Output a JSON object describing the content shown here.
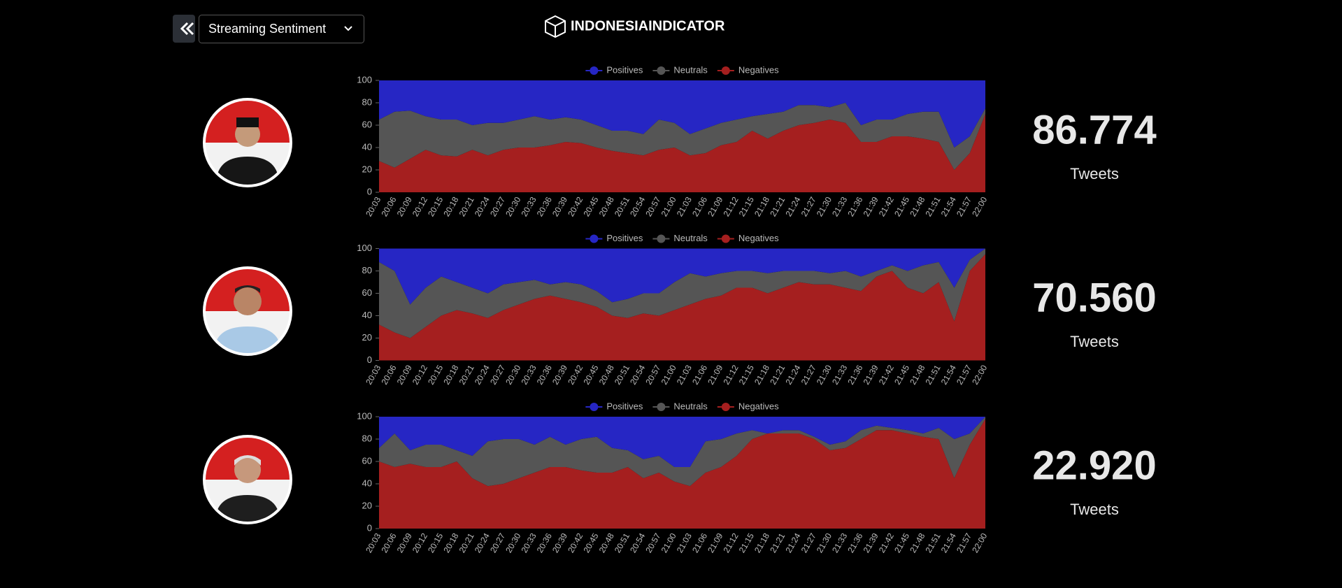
{
  "header": {
    "dropdown": "Streaming Sentiment",
    "brand": "INDONESIAINDICATOR"
  },
  "chart_data": [
    {
      "type": "area",
      "stacked": true,
      "legend": "top",
      "categories": [
        "20:03",
        "20:06",
        "20:09",
        "20:12",
        "20:15",
        "20:18",
        "20:21",
        "20:24",
        "20:27",
        "20:30",
        "20:33",
        "20:36",
        "20:39",
        "20:42",
        "20:45",
        "20:48",
        "20:51",
        "20:54",
        "20:57",
        "21:00",
        "21:03",
        "21:06",
        "21:09",
        "21:12",
        "21:15",
        "21:18",
        "21:21",
        "21:24",
        "21:27",
        "21:30",
        "21:33",
        "21:36",
        "21:39",
        "21:42",
        "21:45",
        "21:48",
        "21:51",
        "21:54",
        "21:57",
        "22:00"
      ],
      "ylim": [
        0,
        100
      ],
      "yticks": [
        0,
        20,
        40,
        60,
        80,
        100
      ],
      "series": [
        {
          "name": "Positives",
          "color": "#2626c4",
          "values": [
            35,
            28,
            27,
            32,
            35,
            35,
            40,
            38,
            38,
            35,
            32,
            35,
            33,
            35,
            40,
            45,
            45,
            48,
            35,
            38,
            48,
            43,
            38,
            35,
            32,
            30,
            28,
            22,
            22,
            24,
            20,
            40,
            35,
            35,
            30,
            28,
            28,
            60,
            50,
            25
          ]
        },
        {
          "name": "Neutrals",
          "color": "#555555",
          "values": [
            37,
            50,
            43,
            30,
            32,
            33,
            22,
            29,
            24,
            25,
            28,
            23,
            22,
            21,
            20,
            18,
            20,
            19,
            27,
            22,
            19,
            22,
            20,
            20,
            13,
            22,
            17,
            18,
            16,
            11,
            18,
            15,
            20,
            15,
            20,
            24,
            27,
            20,
            15,
            5
          ]
        },
        {
          "name": "Negatives",
          "color": "#a51f1f",
          "values": [
            28,
            22,
            30,
            38,
            33,
            32,
            38,
            33,
            38,
            40,
            40,
            42,
            45,
            44,
            40,
            37,
            35,
            33,
            38,
            40,
            33,
            35,
            42,
            45,
            55,
            48,
            55,
            60,
            62,
            65,
            62,
            45,
            45,
            50,
            50,
            48,
            45,
            20,
            35,
            70
          ]
        }
      ]
    },
    {
      "type": "area",
      "stacked": true,
      "legend": "top",
      "categories": [
        "20:03",
        "20:06",
        "20:09",
        "20:12",
        "20:15",
        "20:18",
        "20:21",
        "20:24",
        "20:27",
        "20:30",
        "20:33",
        "20:36",
        "20:39",
        "20:42",
        "20:45",
        "20:48",
        "20:51",
        "20:54",
        "20:57",
        "21:00",
        "21:03",
        "21:06",
        "21:09",
        "21:12",
        "21:15",
        "21:18",
        "21:21",
        "21:24",
        "21:27",
        "21:30",
        "21:33",
        "21:36",
        "21:39",
        "21:42",
        "21:45",
        "21:48",
        "21:51",
        "21:54",
        "21:57",
        "22:00"
      ],
      "ylim": [
        0,
        100
      ],
      "yticks": [
        0,
        20,
        40,
        60,
        80,
        100
      ],
      "series": [
        {
          "name": "Positives",
          "color": "#2626c4",
          "values": [
            12,
            20,
            50,
            35,
            25,
            30,
            35,
            40,
            32,
            30,
            28,
            32,
            30,
            32,
            38,
            48,
            45,
            40,
            40,
            30,
            22,
            25,
            22,
            20,
            20,
            22,
            20,
            20,
            20,
            22,
            20,
            25,
            20,
            15,
            20,
            15,
            12,
            35,
            10,
            0
          ]
        },
        {
          "name": "Neutrals",
          "color": "#555555",
          "values": [
            56,
            55,
            30,
            35,
            35,
            25,
            23,
            22,
            23,
            20,
            17,
            10,
            15,
            16,
            14,
            12,
            17,
            18,
            20,
            25,
            28,
            20,
            20,
            15,
            15,
            18,
            15,
            10,
            12,
            10,
            15,
            13,
            5,
            5,
            15,
            25,
            18,
            30,
            10,
            5
          ]
        },
        {
          "name": "Negatives",
          "color": "#a51f1f",
          "values": [
            32,
            25,
            20,
            30,
            40,
            45,
            42,
            38,
            45,
            50,
            55,
            58,
            55,
            52,
            48,
            40,
            38,
            42,
            40,
            45,
            50,
            55,
            58,
            65,
            65,
            60,
            65,
            70,
            68,
            68,
            65,
            62,
            75,
            80,
            65,
            60,
            70,
            35,
            80,
            95
          ]
        }
      ]
    },
    {
      "type": "area",
      "stacked": true,
      "legend": "top",
      "categories": [
        "20:03",
        "20:06",
        "20:09",
        "20:12",
        "20:15",
        "20:18",
        "20:21",
        "20:24",
        "20:27",
        "20:30",
        "20:33",
        "20:36",
        "20:39",
        "20:42",
        "20:45",
        "20:48",
        "20:51",
        "20:54",
        "20:57",
        "21:00",
        "21:03",
        "21:06",
        "21:09",
        "21:12",
        "21:15",
        "21:18",
        "21:21",
        "21:24",
        "21:27",
        "21:30",
        "21:33",
        "21:36",
        "21:39",
        "21:42",
        "21:45",
        "21:48",
        "21:51",
        "21:54",
        "21:57",
        "22:00"
      ],
      "ylim": [
        0,
        100
      ],
      "yticks": [
        0,
        20,
        40,
        60,
        80,
        100
      ],
      "series": [
        {
          "name": "Positives",
          "color": "#2626c4",
          "values": [
            28,
            15,
            30,
            25,
            25,
            30,
            35,
            22,
            20,
            20,
            25,
            18,
            25,
            20,
            18,
            28,
            30,
            38,
            35,
            45,
            45,
            22,
            20,
            15,
            12,
            15,
            12,
            12,
            18,
            25,
            22,
            12,
            8,
            10,
            12,
            15,
            10,
            20,
            15,
            0
          ]
        },
        {
          "name": "Neutrals",
          "color": "#555555",
          "values": [
            12,
            30,
            12,
            20,
            20,
            10,
            20,
            40,
            40,
            35,
            25,
            27,
            20,
            28,
            32,
            22,
            15,
            17,
            15,
            13,
            17,
            28,
            25,
            20,
            8,
            0,
            3,
            3,
            2,
            5,
            6,
            8,
            4,
            2,
            3,
            3,
            10,
            35,
            10,
            2
          ]
        },
        {
          "name": "Negatives",
          "color": "#a51f1f",
          "values": [
            60,
            55,
            58,
            55,
            55,
            60,
            45,
            38,
            40,
            45,
            50,
            55,
            55,
            52,
            50,
            50,
            55,
            45,
            50,
            42,
            38,
            50,
            55,
            65,
            80,
            85,
            85,
            85,
            80,
            70,
            72,
            80,
            88,
            88,
            85,
            82,
            80,
            45,
            75,
            98
          ]
        }
      ]
    }
  ],
  "stats": [
    {
      "value": "86.774",
      "label": "Tweets"
    },
    {
      "value": "70.560",
      "label": "Tweets"
    },
    {
      "value": "22.920",
      "label": "Tweets"
    }
  ]
}
